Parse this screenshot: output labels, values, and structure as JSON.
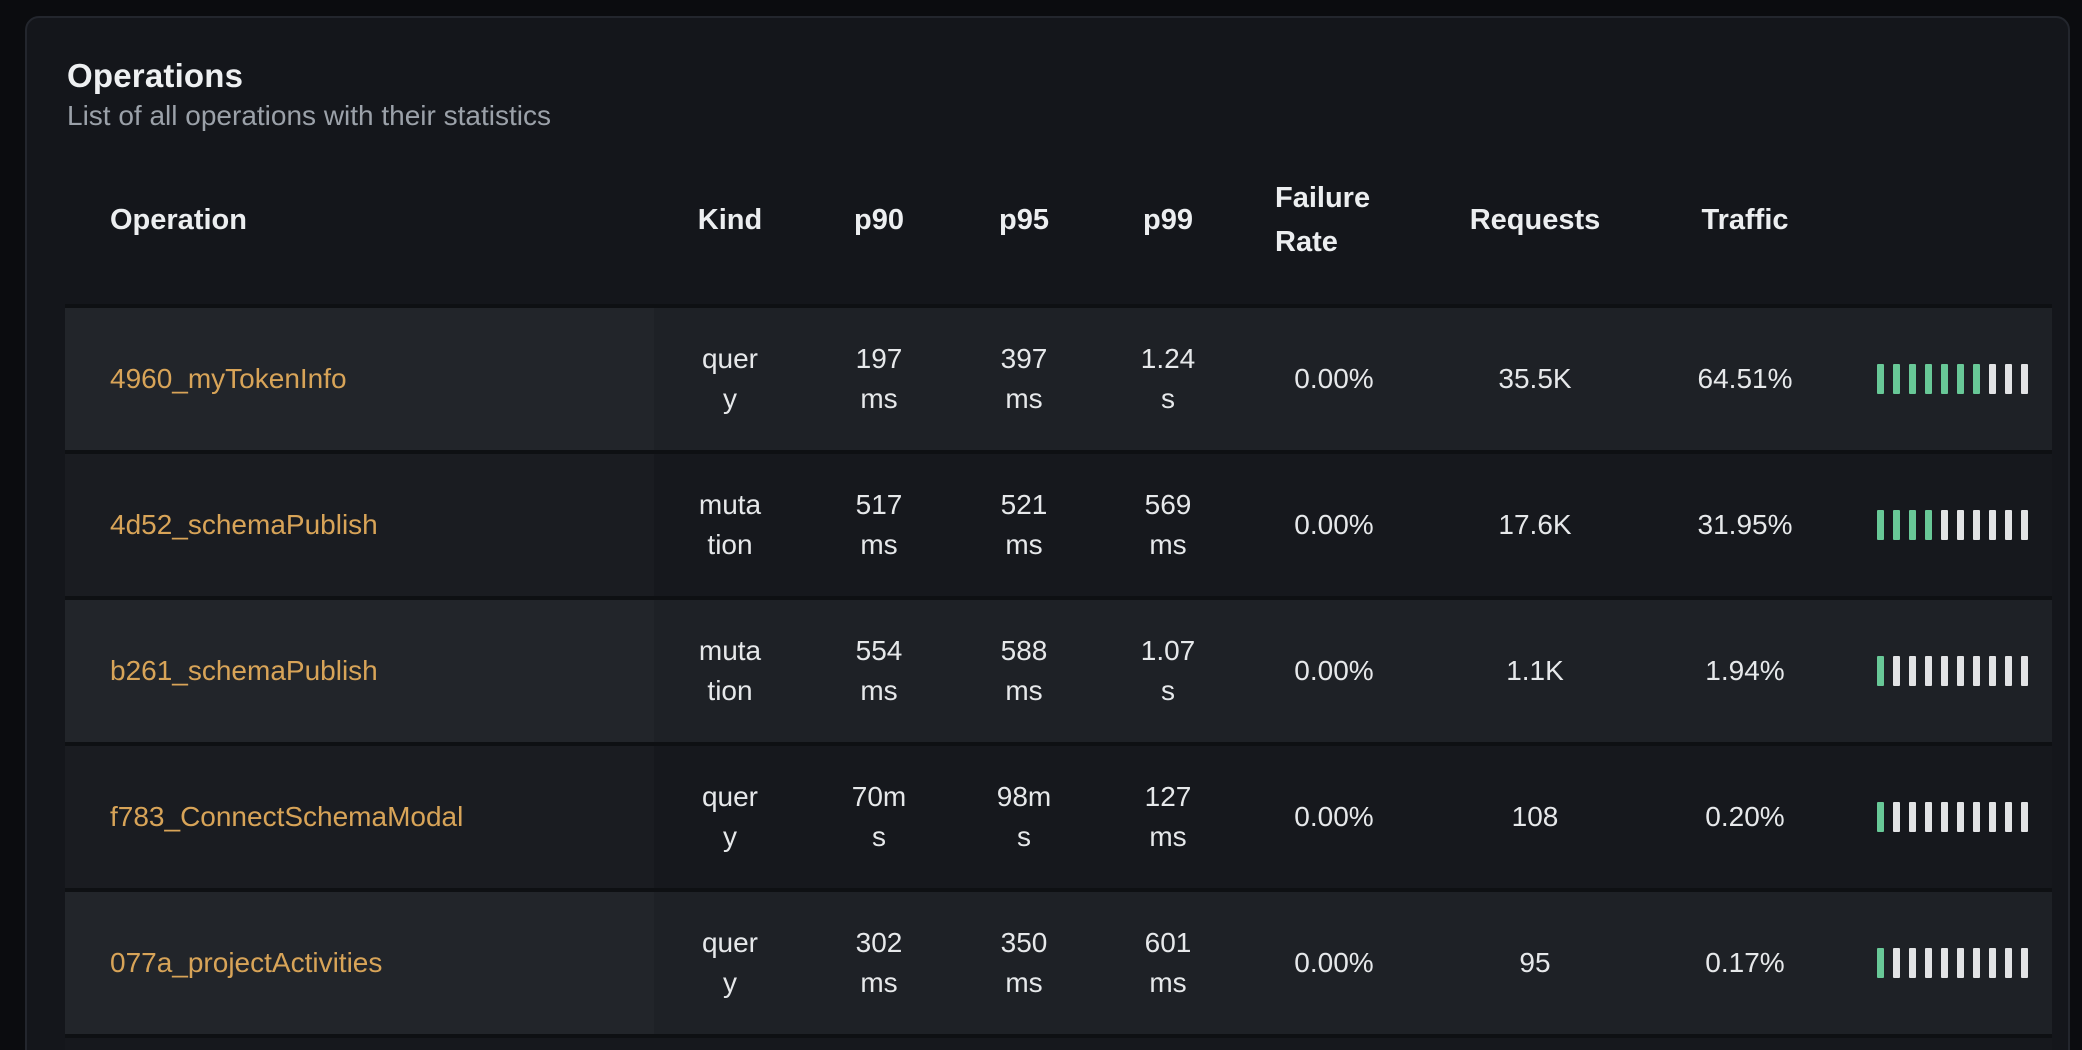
{
  "card": {
    "title": "Operations",
    "subtitle": "List of all operations with their statistics"
  },
  "table": {
    "columns": [
      "Operation",
      "Kind",
      "p90",
      "p95",
      "p99",
      "Failure Rate",
      "Requests",
      "Traffic"
    ],
    "rows": [
      {
        "operation": "4960_myTokenInfo",
        "kind": "query",
        "p90": "197 ms",
        "p95": "397 ms",
        "p99": "1.24 s",
        "failure_rate": "0.00%",
        "requests": "35.5K",
        "traffic": "64.51%",
        "bar_filled": 7,
        "bar_total": 10
      },
      {
        "operation": "4d52_schemaPublish",
        "kind": "mutation",
        "p90": "517 ms",
        "p95": "521 ms",
        "p99": "569 ms",
        "failure_rate": "0.00%",
        "requests": "17.6K",
        "traffic": "31.95%",
        "bar_filled": 4,
        "bar_total": 10
      },
      {
        "operation": "b261_schemaPublish",
        "kind": "mutation",
        "p90": "554 ms",
        "p95": "588 ms",
        "p99": "1.07 s",
        "failure_rate": "0.00%",
        "requests": "1.1K",
        "traffic": "1.94%",
        "bar_filled": 1,
        "bar_total": 10
      },
      {
        "operation": "f783_ConnectSchemaModal",
        "kind": "query",
        "p90": "70ms",
        "p95": "98ms",
        "p99": "127 ms",
        "failure_rate": "0.00%",
        "requests": "108",
        "traffic": "0.20%",
        "bar_filled": 1,
        "bar_total": 10
      },
      {
        "operation": "077a_projectActivities",
        "kind": "query",
        "p90": "302 ms",
        "p95": "350 ms",
        "p99": "601 ms",
        "failure_rate": "0.00%",
        "requests": "95",
        "traffic": "0.17%",
        "bar_filled": 1,
        "bar_total": 10
      }
    ]
  },
  "colors": {
    "link": "#d8a458",
    "bar_filled": "#68c897",
    "bar_empty": "#e2e3e5",
    "row_odd": "#1e2126",
    "row_even": "#16181d"
  }
}
